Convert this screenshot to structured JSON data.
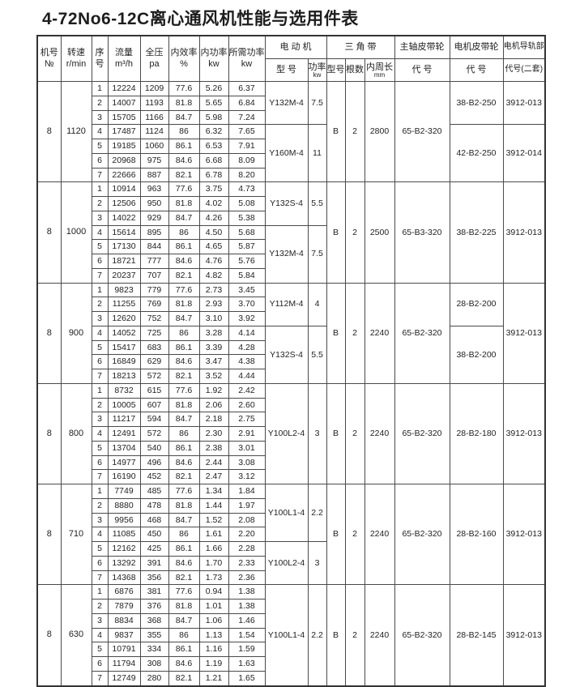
{
  "table": {
    "title": "4-72No6-12C离心通风机性能与选用件表",
    "header": {
      "cols": [
        {
          "l1": "机号",
          "l2": "№"
        },
        {
          "l1": "转速",
          "l2": "r/min"
        },
        {
          "l1": "序",
          "l2": "号"
        },
        {
          "l1": "流量",
          "l2": "m³/h"
        },
        {
          "l1": "全压",
          "l2": "pa"
        },
        {
          "l1": "内效率",
          "l2": "%"
        },
        {
          "l1": "内功率",
          "l2": "kw"
        },
        {
          "l1": "所需功率",
          "l2": "kw"
        }
      ],
      "motor_group": {
        "label": "电 动 机",
        "model": "型 号",
        "power": "功率",
        "power_sub": "kw"
      },
      "belt_group": {
        "label": "三 角 带",
        "model": "型号",
        "count": "根数",
        "length": "内周长",
        "length_sub": "mm"
      },
      "shaft_pulley_group": {
        "label": "主轴皮带轮",
        "sub": "代 号"
      },
      "motor_pulley_group": {
        "label": "电机皮带轮",
        "sub": "代 号"
      },
      "rail_group": {
        "label": "电机导轨部",
        "sub": "代号(二套)"
      }
    },
    "blocks": [
      {
        "machine_no": "8",
        "speed": "1120",
        "rows": [
          [
            "1",
            "12224",
            "1209",
            "77.6",
            "5.26",
            "6.37"
          ],
          [
            "2",
            "14007",
            "1193",
            "81.8",
            "5.65",
            "6.84"
          ],
          [
            "3",
            "15705",
            "1166",
            "84.7",
            "5.98",
            "7.24"
          ],
          [
            "4",
            "17487",
            "1124",
            "86",
            "6.32",
            "7.65"
          ],
          [
            "5",
            "19185",
            "1060",
            "86.1",
            "6.53",
            "7.91"
          ],
          [
            "6",
            "20968",
            "975",
            "84.6",
            "6.68",
            "8.09"
          ],
          [
            "7",
            "22666",
            "887",
            "82.1",
            "6.78",
            "8.20"
          ]
        ],
        "motor": [
          {
            "start": 1,
            "end": 3,
            "model": "Y132M-4",
            "power": "7.5"
          },
          {
            "start": 4,
            "end": 7,
            "model": "Y160M-4",
            "power": "11"
          }
        ],
        "belt": {
          "model": "B",
          "count": "2",
          "length": "2800"
        },
        "shaft_pulley": "65-B2-320",
        "motor_pulley": [
          {
            "start": 1,
            "end": 3,
            "code": "38-B2-250"
          },
          {
            "start": 4,
            "end": 7,
            "code": "42-B2-250"
          }
        ],
        "rail": [
          {
            "start": 1,
            "end": 3,
            "code": "3912-013"
          },
          {
            "start": 4,
            "end": 7,
            "code": "3912-014"
          }
        ]
      },
      {
        "machine_no": "8",
        "speed": "1000",
        "rows": [
          [
            "1",
            "10914",
            "963",
            "77.6",
            "3.75",
            "4.73"
          ],
          [
            "2",
            "12506",
            "950",
            "81.8",
            "4.02",
            "5.08"
          ],
          [
            "3",
            "14022",
            "929",
            "84.7",
            "4.26",
            "5.38"
          ],
          [
            "4",
            "15614",
            "895",
            "86",
            "4.50",
            "5.68"
          ],
          [
            "5",
            "17130",
            "844",
            "86.1",
            "4.65",
            "5.87"
          ],
          [
            "6",
            "18721",
            "777",
            "84.6",
            "4.76",
            "5.76"
          ],
          [
            "7",
            "20237",
            "707",
            "82.1",
            "4.82",
            "5.84"
          ]
        ],
        "motor": [
          {
            "start": 1,
            "end": 3,
            "model": "Y132S-4",
            "power": "5.5"
          },
          {
            "start": 4,
            "end": 7,
            "model": "Y132M-4",
            "power": "7.5"
          }
        ],
        "belt": {
          "model": "B",
          "count": "2",
          "length": "2500"
        },
        "shaft_pulley": "65-B3-320",
        "motor_pulley": [
          {
            "start": 1,
            "end": 7,
            "code": "38-B2-225"
          }
        ],
        "rail": [
          {
            "start": 1,
            "end": 7,
            "code": "3912-013"
          }
        ]
      },
      {
        "machine_no": "8",
        "speed": "900",
        "rows": [
          [
            "1",
            "9823",
            "779",
            "77.6",
            "2.73",
            "3.45"
          ],
          [
            "2",
            "11255",
            "769",
            "81.8",
            "2.93",
            "3.70"
          ],
          [
            "3",
            "12620",
            "752",
            "84.7",
            "3.10",
            "3.92"
          ],
          [
            "4",
            "14052",
            "725",
            "86",
            "3.28",
            "4.14"
          ],
          [
            "5",
            "15417",
            "683",
            "86.1",
            "3.39",
            "4.28"
          ],
          [
            "6",
            "16849",
            "629",
            "84.6",
            "3.47",
            "4.38"
          ],
          [
            "7",
            "18213",
            "572",
            "82.1",
            "3.52",
            "4.44"
          ]
        ],
        "motor": [
          {
            "start": 1,
            "end": 3,
            "model": "Y112M-4",
            "power": "4"
          },
          {
            "start": 4,
            "end": 7,
            "model": "Y132S-4",
            "power": "5.5"
          }
        ],
        "belt": {
          "model": "B",
          "count": "2",
          "length": "2240"
        },
        "shaft_pulley": "65-B2-320",
        "motor_pulley": [
          {
            "start": 1,
            "end": 3,
            "code": "28-B2-200"
          },
          {
            "start": 4,
            "end": 7,
            "code": "38-B2-200"
          }
        ],
        "rail": [
          {
            "start": 1,
            "end": 7,
            "code": "3912-013"
          }
        ]
      },
      {
        "machine_no": "8",
        "speed": "800",
        "rows": [
          [
            "1",
            "8732",
            "615",
            "77.6",
            "1.92",
            "2.42"
          ],
          [
            "2",
            "10005",
            "607",
            "81.8",
            "2.06",
            "2.60"
          ],
          [
            "3",
            "11217",
            "594",
            "84.7",
            "2.18",
            "2.75"
          ],
          [
            "4",
            "12491",
            "572",
            "86",
            "2.30",
            "2.91"
          ],
          [
            "5",
            "13704",
            "540",
            "86.1",
            "2.38",
            "3.01"
          ],
          [
            "6",
            "14977",
            "496",
            "84.6",
            "2.44",
            "3.08"
          ],
          [
            "7",
            "16190",
            "452",
            "82.1",
            "2.47",
            "3.12"
          ]
        ],
        "motor": [
          {
            "start": 1,
            "end": 7,
            "model": "Y100L2-4",
            "power": "3"
          }
        ],
        "belt": {
          "model": "B",
          "count": "2",
          "length": "2240"
        },
        "shaft_pulley": "65-B2-320",
        "motor_pulley": [
          {
            "start": 1,
            "end": 7,
            "code": "28-B2-180"
          }
        ],
        "rail": [
          {
            "start": 1,
            "end": 7,
            "code": "3912-013"
          }
        ]
      },
      {
        "machine_no": "8",
        "speed": "710",
        "rows": [
          [
            "1",
            "7749",
            "485",
            "77.6",
            "1.34",
            "1.84"
          ],
          [
            "2",
            "8880",
            "478",
            "81.8",
            "1.44",
            "1.97"
          ],
          [
            "3",
            "9956",
            "468",
            "84.7",
            "1.52",
            "2.08"
          ],
          [
            "4",
            "11085",
            "450",
            "86",
            "1.61",
            "2.20"
          ],
          [
            "5",
            "12162",
            "425",
            "86.1",
            "1.66",
            "2.28"
          ],
          [
            "6",
            "13292",
            "391",
            "84.6",
            "1.70",
            "2.33"
          ],
          [
            "7",
            "14368",
            "356",
            "82.1",
            "1.73",
            "2.36"
          ]
        ],
        "motor": [
          {
            "start": 1,
            "end": 4,
            "model": "Y100L1-4",
            "power": "2.2"
          },
          {
            "start": 5,
            "end": 7,
            "model": "Y100L2-4",
            "power": "3"
          }
        ],
        "belt": {
          "model": "B",
          "count": "2",
          "length": "2240"
        },
        "shaft_pulley": "65-B2-320",
        "motor_pulley": [
          {
            "start": 1,
            "end": 7,
            "code": "28-B2-160"
          }
        ],
        "rail": [
          {
            "start": 1,
            "end": 7,
            "code": "3912-013"
          }
        ]
      },
      {
        "machine_no": "8",
        "speed": "630",
        "rows": [
          [
            "1",
            "6876",
            "381",
            "77.6",
            "0.94",
            "1.38"
          ],
          [
            "2",
            "7879",
            "376",
            "81.8",
            "1.01",
            "1.38"
          ],
          [
            "3",
            "8834",
            "368",
            "84.7",
            "1.06",
            "1.46"
          ],
          [
            "4",
            "9837",
            "355",
            "86",
            "1.13",
            "1.54"
          ],
          [
            "5",
            "10791",
            "334",
            "86.1",
            "1.16",
            "1.59"
          ],
          [
            "6",
            "11794",
            "308",
            "84.6",
            "1.19",
            "1.63"
          ],
          [
            "7",
            "12749",
            "280",
            "82.1",
            "1.21",
            "1.65"
          ]
        ],
        "motor": [
          {
            "start": 1,
            "end": 7,
            "model": "Y100L1-4",
            "power": "2.2"
          }
        ],
        "belt": {
          "model": "B",
          "count": "2",
          "length": "2240"
        },
        "shaft_pulley": "65-B2-320",
        "motor_pulley": [
          {
            "start": 1,
            "end": 7,
            "code": "28-B2-145"
          }
        ],
        "rail": [
          {
            "start": 1,
            "end": 7,
            "code": "3912-013"
          }
        ]
      }
    ]
  }
}
